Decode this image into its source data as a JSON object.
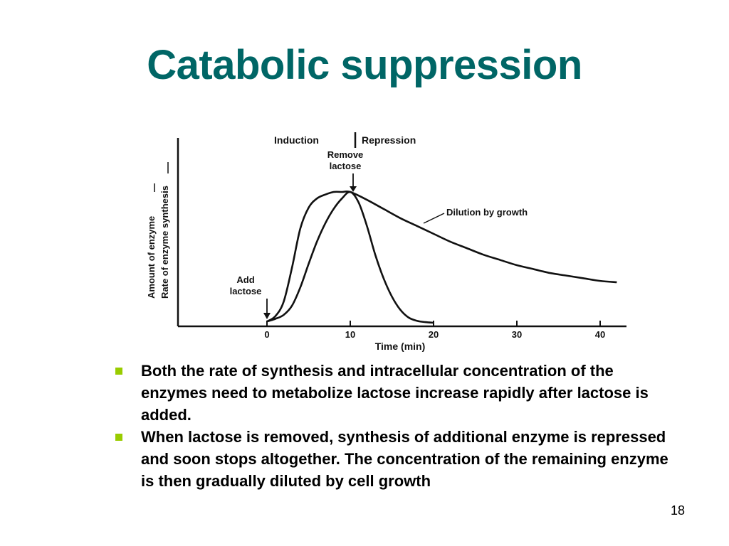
{
  "slide": {
    "title": "Catabolic suppression",
    "page_number": "18"
  },
  "bullets": [
    "Both the rate of synthesis and intracellular concentration of the enzymes need to metabolize lactose increase rapidly after lactose is added.",
    "When lactose is removed, synthesis of additional enzyme is repressed and soon stops altogether. The concentration of the remaining enzyme is then gradually diluted by cell growth"
  ],
  "colors": {
    "title": "#006666",
    "bullet_marker": "#99cc00",
    "ink": "#111111"
  },
  "chart_data": {
    "type": "line",
    "xlabel": "Time (min)",
    "ylabel": "Amount of enzyme",
    "ylabel_secondary": "Rate of enzyme synthesis",
    "xticks": [
      0,
      10,
      20,
      30,
      40
    ],
    "xlim": [
      0,
      42
    ],
    "ylim": [
      0,
      1
    ],
    "grid": false,
    "phase_labels": {
      "left": "Induction",
      "right": "Repression"
    },
    "annotations": [
      {
        "text": "Add lactose",
        "x": 0
      },
      {
        "text": "Remove lactose",
        "x": 10
      },
      {
        "text": "Dilution by growth",
        "x": 20
      }
    ],
    "series": [
      {
        "id": "rate_of_synthesis",
        "points": [
          [
            0,
            0.01
          ],
          [
            1,
            0.03
          ],
          [
            2,
            0.06
          ],
          [
            3,
            0.13
          ],
          [
            4,
            0.27
          ],
          [
            5,
            0.45
          ],
          [
            6,
            0.62
          ],
          [
            7,
            0.76
          ],
          [
            8,
            0.87
          ],
          [
            9,
            0.95
          ],
          [
            10,
            1.0
          ],
          [
            11,
            0.92
          ],
          [
            12,
            0.74
          ],
          [
            13,
            0.52
          ],
          [
            14,
            0.34
          ],
          [
            15,
            0.2
          ],
          [
            16,
            0.1
          ],
          [
            17,
            0.04
          ],
          [
            18,
            0.015
          ],
          [
            19,
            0.005
          ],
          [
            20,
            0.0
          ]
        ]
      },
      {
        "id": "amount_of_enzyme",
        "points": [
          [
            0,
            0.01
          ],
          [
            1,
            0.05
          ],
          [
            2,
            0.16
          ],
          [
            3,
            0.42
          ],
          [
            4,
            0.72
          ],
          [
            5,
            0.88
          ],
          [
            6,
            0.95
          ],
          [
            7,
            0.98
          ],
          [
            8,
            1.0
          ],
          [
            9,
            1.0
          ],
          [
            10,
            1.0
          ],
          [
            12,
            0.94
          ],
          [
            14,
            0.87
          ],
          [
            16,
            0.8
          ],
          [
            18,
            0.74
          ],
          [
            20,
            0.68
          ],
          [
            22,
            0.62
          ],
          [
            24,
            0.57
          ],
          [
            26,
            0.52
          ],
          [
            28,
            0.48
          ],
          [
            30,
            0.44
          ],
          [
            32,
            0.41
          ],
          [
            34,
            0.38
          ],
          [
            36,
            0.36
          ],
          [
            38,
            0.34
          ],
          [
            40,
            0.32
          ],
          [
            42,
            0.31
          ]
        ]
      }
    ]
  }
}
